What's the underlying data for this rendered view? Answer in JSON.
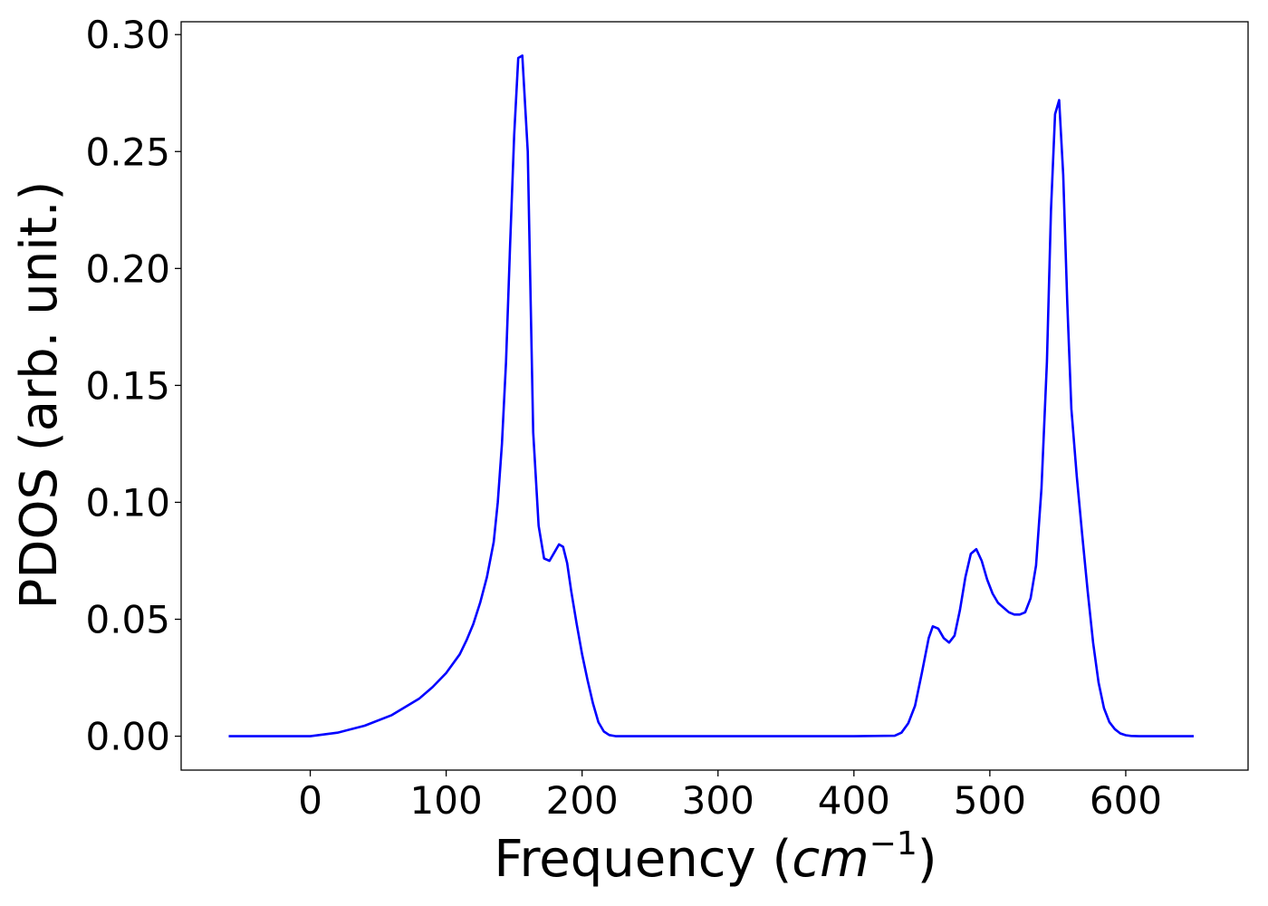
{
  "chart_data": {
    "type": "line",
    "xlabel": "Frequency (cm⁻¹)",
    "xlabel_parts": {
      "prefix": "Frequency (",
      "math": "cm",
      "superscript": "−1",
      "suffix": ")"
    },
    "ylabel": "PDOS (arb. unit.)",
    "xlim": [
      -95,
      690
    ],
    "ylim": [
      -0.0145,
      0.3055
    ],
    "x_ticks": [
      0,
      100,
      200,
      300,
      400,
      500,
      600
    ],
    "x_tick_labels": [
      "0",
      "100",
      "200",
      "300",
      "400",
      "500",
      "600"
    ],
    "y_ticks": [
      0.0,
      0.05,
      0.1,
      0.15,
      0.2,
      0.25,
      0.3
    ],
    "y_tick_labels": [
      "0.00",
      "0.05",
      "0.10",
      "0.15",
      "0.20",
      "0.25",
      "0.30"
    ],
    "grid": false,
    "legend": "none",
    "series": [
      {
        "color": "#0000ff",
        "x": [
          -60,
          -40,
          -20,
          0,
          20,
          40,
          60,
          80,
          90,
          100,
          110,
          115,
          120,
          125,
          130,
          135,
          138,
          141,
          144,
          147,
          150,
          153,
          156,
          160,
          164,
          168,
          172,
          176,
          180,
          183,
          186,
          189,
          192,
          196,
          200,
          204,
          208,
          212,
          216,
          220,
          225,
          230,
          300,
          400,
          430,
          435,
          440,
          445,
          450,
          455,
          458,
          462,
          466,
          470,
          474,
          478,
          482,
          486,
          490,
          494,
          498,
          502,
          506,
          510,
          514,
          518,
          522,
          526,
          530,
          534,
          538,
          542,
          545,
          548,
          551,
          554,
          557,
          560,
          564,
          568,
          572,
          576,
          580,
          584,
          588,
          592,
          596,
          600,
          604,
          610,
          620,
          650
        ],
        "y": [
          0.0,
          0.0,
          0.0,
          0.0,
          0.0015,
          0.0045,
          0.009,
          0.016,
          0.021,
          0.027,
          0.035,
          0.041,
          0.048,
          0.057,
          0.068,
          0.083,
          0.1,
          0.125,
          0.16,
          0.21,
          0.257,
          0.29,
          0.291,
          0.25,
          0.13,
          0.09,
          0.076,
          0.075,
          0.079,
          0.082,
          0.081,
          0.074,
          0.062,
          0.048,
          0.035,
          0.024,
          0.014,
          0.006,
          0.002,
          0.0005,
          0.0,
          0.0,
          0.0,
          0.0,
          0.0002,
          0.0015,
          0.0055,
          0.013,
          0.027,
          0.042,
          0.047,
          0.046,
          0.042,
          0.04,
          0.043,
          0.054,
          0.068,
          0.078,
          0.08,
          0.075,
          0.067,
          0.061,
          0.057,
          0.055,
          0.053,
          0.052,
          0.052,
          0.053,
          0.059,
          0.073,
          0.106,
          0.16,
          0.225,
          0.266,
          0.272,
          0.24,
          0.185,
          0.14,
          0.111,
          0.086,
          0.062,
          0.04,
          0.023,
          0.012,
          0.006,
          0.003,
          0.0012,
          0.0004,
          0.0001,
          0.0,
          0.0,
          0.0
        ]
      }
    ]
  }
}
